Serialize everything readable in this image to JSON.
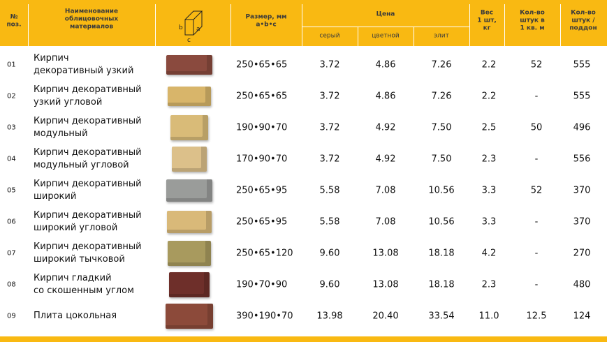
{
  "header": {
    "num": [
      "№",
      "поз."
    ],
    "name": [
      "Наименование",
      "облицовочных",
      "материалов"
    ],
    "diagram_labels": [
      "b",
      "a",
      "c"
    ],
    "size": [
      "Размер, мм",
      "a•b•c"
    ],
    "price": "Цена",
    "price_grey": "серый",
    "price_color": "цветной",
    "price_elite": "элит",
    "weight": [
      "Вес",
      "1 шт,",
      "кг"
    ],
    "per_sqm": [
      "Кол-во",
      "штук в",
      "1 кв. м"
    ],
    "per_pallet": [
      "Кол-во",
      "штук /",
      "поддон"
    ]
  },
  "rows": [
    {
      "num": "01",
      "name": [
        "Кирпич",
        "декоративный узкий"
      ],
      "size": "250•65•65",
      "grey": "3.72",
      "color": "4.86",
      "elite": "7.26",
      "weight": "2.2",
      "per_sqm": "52",
      "per_pallet": "555"
    },
    {
      "num": "02",
      "name": [
        "Кирпич декоративный",
        "узкий угловой"
      ],
      "size": "250•65•65",
      "grey": "3.72",
      "color": "4.86",
      "elite": "7.26",
      "weight": "2.2",
      "per_sqm": "-",
      "per_pallet": "555"
    },
    {
      "num": "03",
      "name": [
        "Кирпич декоративный",
        "модульный"
      ],
      "size": "190•90•70",
      "grey": "3.72",
      "color": "4.92",
      "elite": "7.50",
      "weight": "2.5",
      "per_sqm": "50",
      "per_pallet": "496"
    },
    {
      "num": "04",
      "name": [
        "Кирпич декоративный",
        "модульный угловой"
      ],
      "size": "170•90•70",
      "grey": "3.72",
      "color": "4.92",
      "elite": "7.50",
      "weight": "2.3",
      "per_sqm": "-",
      "per_pallet": "556"
    },
    {
      "num": "05",
      "name": [
        "Кирпич декоративный",
        "широкий"
      ],
      "size": "250•65•95",
      "grey": "5.58",
      "color": "7.08",
      "elite": "10.56",
      "weight": "3.3",
      "per_sqm": "52",
      "per_pallet": "370"
    },
    {
      "num": "06",
      "name": [
        "Кирпич декоративный",
        "широкий угловой"
      ],
      "size": "250•65•95",
      "grey": "5.58",
      "color": "7.08",
      "elite": "10.56",
      "weight": "3.3",
      "per_sqm": "-",
      "per_pallet": "370"
    },
    {
      "num": "07",
      "name": [
        "Кирпич декоративный",
        "широкий тычковой"
      ],
      "size": "250•65•120",
      "grey": "9.60",
      "color": "13.08",
      "elite": "18.18",
      "weight": "4.2",
      "per_sqm": "-",
      "per_pallet": "270"
    },
    {
      "num": "08",
      "name": [
        "Кирпич гладкий",
        "со скошенным углом"
      ],
      "size": "190•70•90",
      "grey": "9.60",
      "color": "13.08",
      "elite": "18.18",
      "weight": "2.3",
      "per_sqm": "-",
      "per_pallet": "480"
    },
    {
      "num": "09",
      "name": [
        "Плита цокольная"
      ],
      "size": "390•190•70",
      "grey": "13.98",
      "color": "20.40",
      "elite": "33.54",
      "weight": "11.0",
      "per_sqm": "12.5",
      "per_pallet": "124"
    }
  ]
}
